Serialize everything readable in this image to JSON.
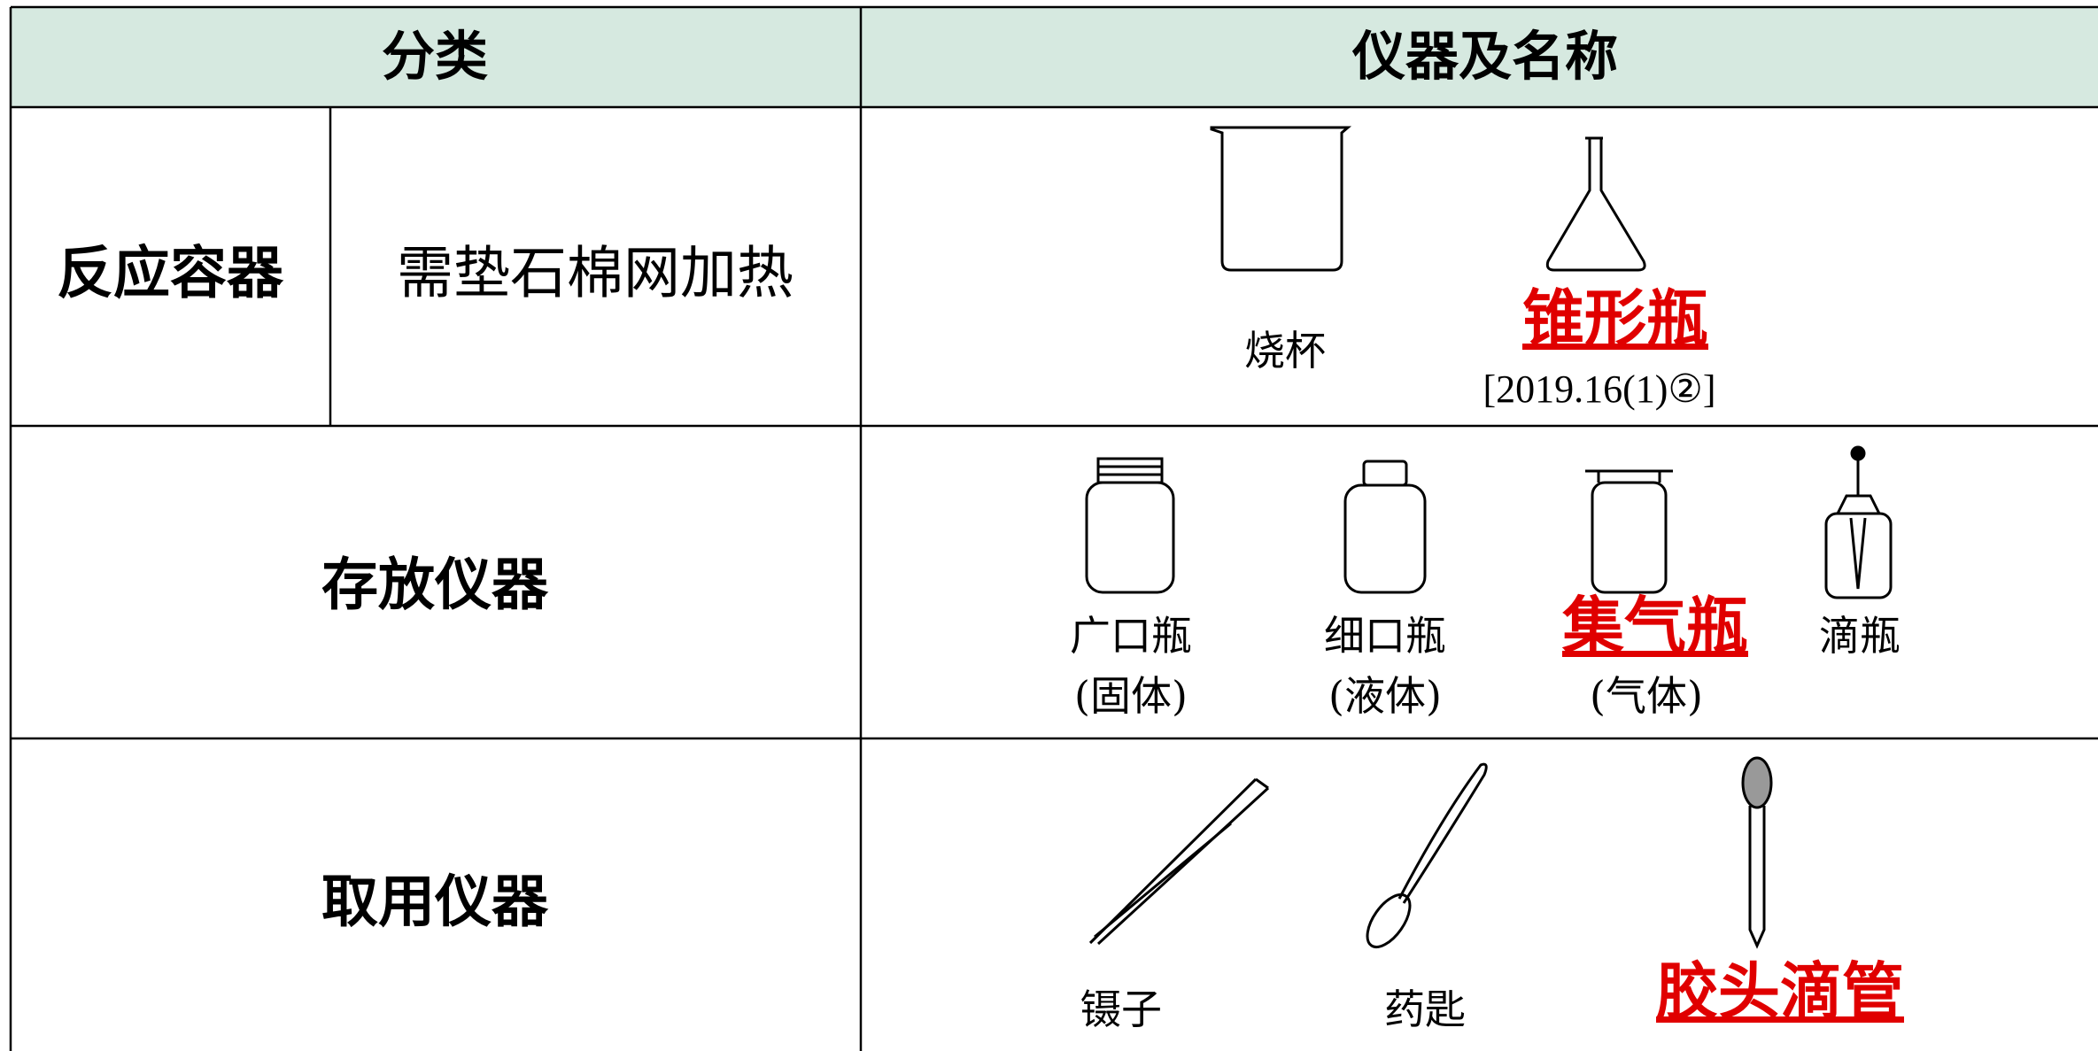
{
  "table": {
    "header": [
      "分类",
      "仪器及名称"
    ],
    "rows": [
      {
        "category": "反应容器",
        "subcategory": "需垫石棉网加热",
        "items": [
          {
            "name": "烧杯"
          },
          {
            "name": "锥形瓶",
            "note": "[2019.16(1)②]",
            "highlight": true
          }
        ]
      },
      {
        "category": "存放仪器",
        "items": [
          {
            "name": "广口瓶",
            "note": "(固体)"
          },
          {
            "name": "细口瓶",
            "note": "(液体)"
          },
          {
            "name": "集气瓶",
            "note": "(气体)",
            "highlight": true
          },
          {
            "name": "滴瓶"
          }
        ]
      },
      {
        "category": "取用仪器",
        "items": [
          {
            "name": "镊子"
          },
          {
            "name": "药匙"
          },
          {
            "name": "胶头滴管",
            "highlight": true
          }
        ]
      }
    ]
  }
}
